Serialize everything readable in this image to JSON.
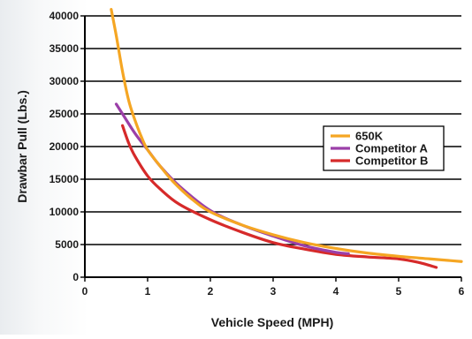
{
  "chart_data": {
    "type": "line",
    "title": "",
    "xlabel": "Vehicle Speed (MPH)",
    "ylabel": "Drawbar Pull (Lbs.)",
    "xlim": [
      0,
      6
    ],
    "ylim": [
      0,
      40000
    ],
    "xticks": [
      "0",
      "1",
      "2",
      "3",
      "4",
      "5",
      "6"
    ],
    "yticks": [
      "0",
      "5000",
      "10000",
      "15000",
      "20000",
      "25000",
      "30000",
      "35000",
      "40000"
    ],
    "grid": "horizontal",
    "legend_position": "right-middle",
    "series": [
      {
        "name": "650K",
        "color": "#f5a623",
        "x": [
          0.42,
          0.5,
          0.6,
          0.7,
          0.8,
          0.9,
          1.0,
          1.2,
          1.4,
          1.7,
          2.0,
          2.5,
          3.0,
          3.5,
          4.0,
          4.5,
          5.0,
          5.5,
          6.0
        ],
        "y": [
          41000,
          37000,
          31500,
          27000,
          24000,
          21500,
          19500,
          17000,
          14700,
          12000,
          10000,
          8000,
          6500,
          5300,
          4400,
          3700,
          3200,
          2800,
          2400
        ]
      },
      {
        "name": "Competitor A",
        "color": "#9b3fa8",
        "x": [
          0.5,
          0.6,
          0.8,
          1.0,
          1.2,
          1.5,
          2.0,
          2.5,
          3.0,
          3.5,
          4.0,
          4.2
        ],
        "y": [
          26500,
          25000,
          22000,
          19500,
          17000,
          14000,
          10200,
          8000,
          6300,
          4800,
          3800,
          3600
        ]
      },
      {
        "name": "Competitor B",
        "color": "#d62a2a",
        "x": [
          0.6,
          0.7,
          0.8,
          1.0,
          1.2,
          1.5,
          2.0,
          2.5,
          3.0,
          3.5,
          4.0,
          4.5,
          5.0,
          5.3,
          5.6
        ],
        "y": [
          23200,
          20500,
          18500,
          15500,
          13500,
          11200,
          8800,
          6900,
          5300,
          4300,
          3500,
          3100,
          2800,
          2300,
          1500
        ]
      }
    ]
  }
}
